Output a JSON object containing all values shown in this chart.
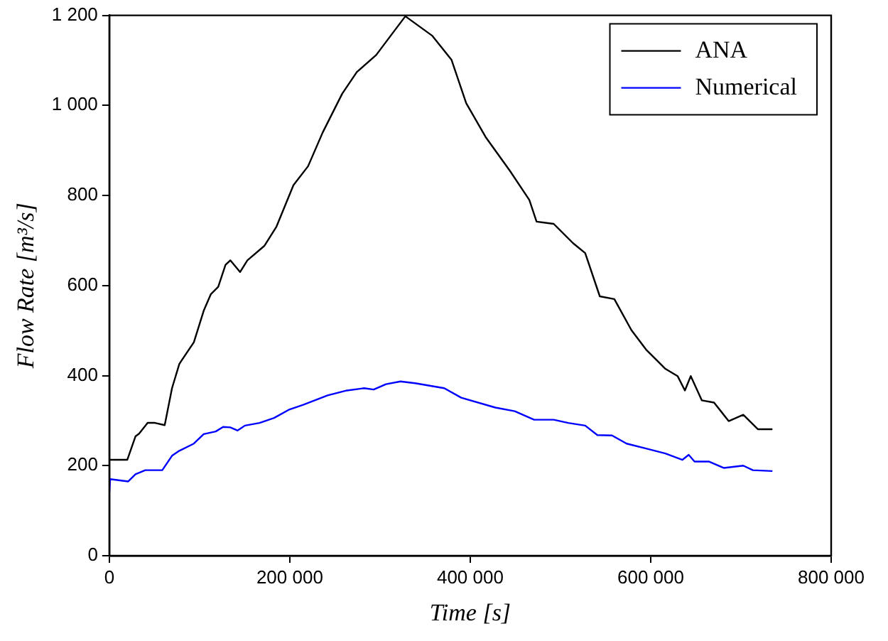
{
  "chart_data": {
    "type": "line",
    "xlabel": "Time [s]",
    "ylabel": "Flow Rate [m³/s]",
    "xlim": [
      0,
      800000
    ],
    "ylim": [
      0,
      1200
    ],
    "xticks": [
      0,
      {
        "value": 200000,
        "label": "200 000"
      },
      {
        "value": 400000,
        "label": "400 000"
      },
      {
        "value": 600000,
        "label": "600 000"
      },
      {
        "value": 800000,
        "label": "800 000"
      }
    ],
    "yticks": [
      0,
      200,
      400,
      600,
      800,
      {
        "value": 1000,
        "label": "1 000"
      },
      {
        "value": 1200,
        "label": "1 200"
      }
    ],
    "grid": false,
    "legend": "top right",
    "marker": "none",
    "line_style": "solid",
    "series": [
      {
        "name": "ANA",
        "color": "#000000",
        "x": [
          0,
          19900,
          29000,
          33000,
          42500,
          50600,
          61400,
          69500,
          77600,
          93700,
          104600,
          112600,
          120700,
          128800,
          134100,
          144900,
          153000,
          171800,
          185300,
          204100,
          220300,
          236500,
          258100,
          274300,
          295800,
          311900,
          328100,
          357700,
          379300,
          395500,
          417000,
          443900,
          465500,
          473500,
          492500,
          514000,
          527400,
          543600,
          559700,
          578600,
          594800,
          616300,
          629800,
          637900,
          644400,
          656700,
          670200,
          686400,
          702600,
          718700,
          734900
        ],
        "values": [
          213,
          213,
          265,
          271,
          295,
          295,
          290,
          372,
          426,
          474,
          544,
          581,
          597,
          646,
          656,
          630,
          656,
          688,
          731,
          823,
          865,
          940,
          1026,
          1074,
          1112,
          1155,
          1198,
          1155,
          1101,
          1005,
          930,
          855,
          790,
          742,
          737,
          694,
          672,
          576,
          570,
          501,
          458,
          415,
          399,
          367,
          399,
          345,
          340,
          299,
          313,
          281,
          281
        ]
      },
      {
        "name": "Numerical",
        "color": "#0000ff",
        "x": [
          0,
          1000,
          21000,
          29000,
          39900,
          58700,
          69500,
          77600,
          93700,
          104600,
          118000,
          126100,
          134100,
          142200,
          150300,
          166500,
          182600,
          198800,
          214900,
          241900,
          263400,
          282300,
          293000,
          306600,
          322700,
          338900,
          371200,
          390000,
          427800,
          449300,
          470800,
          492500,
          508600,
          527400,
          540900,
          557100,
          573300,
          594800,
          616300,
          635200,
          642100,
          648600,
          664800,
          681000,
          702600,
          713200,
          734900
        ],
        "values": [
          140,
          170,
          165,
          181,
          190,
          190,
          222,
          233,
          249,
          270,
          276,
          286,
          285,
          278,
          289,
          295,
          306,
          324,
          335,
          356,
          367,
          372,
          369,
          381,
          387,
          383,
          372,
          351,
          329,
          321,
          302,
          302,
          295,
          289,
          268,
          267,
          249,
          238,
          227,
          213,
          224,
          209,
          209,
          195,
          200,
          190,
          188
        ]
      }
    ]
  }
}
